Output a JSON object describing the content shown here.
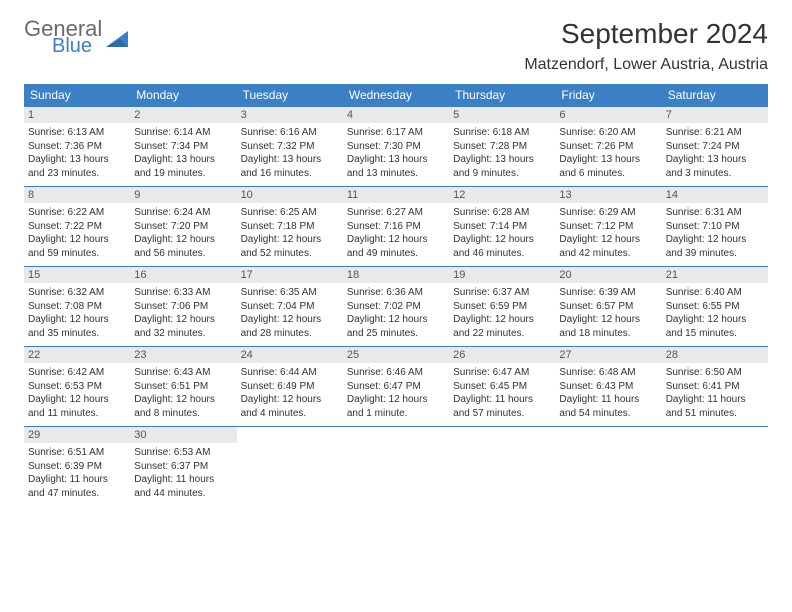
{
  "logo": {
    "general": "General",
    "blue": "Blue"
  },
  "title": "September 2024",
  "location": "Matzendorf, Lower Austria, Austria",
  "colors": {
    "header_bg": "#3b7fc4",
    "header_text": "#ffffff",
    "daynum_bg": "#e9e9e9",
    "text": "#333333",
    "logo_gray": "#6b6b6b",
    "logo_blue": "#3b7fc4"
  },
  "dayHeaders": [
    "Sunday",
    "Monday",
    "Tuesday",
    "Wednesday",
    "Thursday",
    "Friday",
    "Saturday"
  ],
  "weeks": [
    [
      {
        "n": "1",
        "sunrise": "6:13 AM",
        "sunset": "7:36 PM",
        "daylight": "13 hours and 23 minutes."
      },
      {
        "n": "2",
        "sunrise": "6:14 AM",
        "sunset": "7:34 PM",
        "daylight": "13 hours and 19 minutes."
      },
      {
        "n": "3",
        "sunrise": "6:16 AM",
        "sunset": "7:32 PM",
        "daylight": "13 hours and 16 minutes."
      },
      {
        "n": "4",
        "sunrise": "6:17 AM",
        "sunset": "7:30 PM",
        "daylight": "13 hours and 13 minutes."
      },
      {
        "n": "5",
        "sunrise": "6:18 AM",
        "sunset": "7:28 PM",
        "daylight": "13 hours and 9 minutes."
      },
      {
        "n": "6",
        "sunrise": "6:20 AM",
        "sunset": "7:26 PM",
        "daylight": "13 hours and 6 minutes."
      },
      {
        "n": "7",
        "sunrise": "6:21 AM",
        "sunset": "7:24 PM",
        "daylight": "13 hours and 3 minutes."
      }
    ],
    [
      {
        "n": "8",
        "sunrise": "6:22 AM",
        "sunset": "7:22 PM",
        "daylight": "12 hours and 59 minutes."
      },
      {
        "n": "9",
        "sunrise": "6:24 AM",
        "sunset": "7:20 PM",
        "daylight": "12 hours and 56 minutes."
      },
      {
        "n": "10",
        "sunrise": "6:25 AM",
        "sunset": "7:18 PM",
        "daylight": "12 hours and 52 minutes."
      },
      {
        "n": "11",
        "sunrise": "6:27 AM",
        "sunset": "7:16 PM",
        "daylight": "12 hours and 49 minutes."
      },
      {
        "n": "12",
        "sunrise": "6:28 AM",
        "sunset": "7:14 PM",
        "daylight": "12 hours and 46 minutes."
      },
      {
        "n": "13",
        "sunrise": "6:29 AM",
        "sunset": "7:12 PM",
        "daylight": "12 hours and 42 minutes."
      },
      {
        "n": "14",
        "sunrise": "6:31 AM",
        "sunset": "7:10 PM",
        "daylight": "12 hours and 39 minutes."
      }
    ],
    [
      {
        "n": "15",
        "sunrise": "6:32 AM",
        "sunset": "7:08 PM",
        "daylight": "12 hours and 35 minutes."
      },
      {
        "n": "16",
        "sunrise": "6:33 AM",
        "sunset": "7:06 PM",
        "daylight": "12 hours and 32 minutes."
      },
      {
        "n": "17",
        "sunrise": "6:35 AM",
        "sunset": "7:04 PM",
        "daylight": "12 hours and 28 minutes."
      },
      {
        "n": "18",
        "sunrise": "6:36 AM",
        "sunset": "7:02 PM",
        "daylight": "12 hours and 25 minutes."
      },
      {
        "n": "19",
        "sunrise": "6:37 AM",
        "sunset": "6:59 PM",
        "daylight": "12 hours and 22 minutes."
      },
      {
        "n": "20",
        "sunrise": "6:39 AM",
        "sunset": "6:57 PM",
        "daylight": "12 hours and 18 minutes."
      },
      {
        "n": "21",
        "sunrise": "6:40 AM",
        "sunset": "6:55 PM",
        "daylight": "12 hours and 15 minutes."
      }
    ],
    [
      {
        "n": "22",
        "sunrise": "6:42 AM",
        "sunset": "6:53 PM",
        "daylight": "12 hours and 11 minutes."
      },
      {
        "n": "23",
        "sunrise": "6:43 AM",
        "sunset": "6:51 PM",
        "daylight": "12 hours and 8 minutes."
      },
      {
        "n": "24",
        "sunrise": "6:44 AM",
        "sunset": "6:49 PM",
        "daylight": "12 hours and 4 minutes."
      },
      {
        "n": "25",
        "sunrise": "6:46 AM",
        "sunset": "6:47 PM",
        "daylight": "12 hours and 1 minute."
      },
      {
        "n": "26",
        "sunrise": "6:47 AM",
        "sunset": "6:45 PM",
        "daylight": "11 hours and 57 minutes."
      },
      {
        "n": "27",
        "sunrise": "6:48 AM",
        "sunset": "6:43 PM",
        "daylight": "11 hours and 54 minutes."
      },
      {
        "n": "28",
        "sunrise": "6:50 AM",
        "sunset": "6:41 PM",
        "daylight": "11 hours and 51 minutes."
      }
    ],
    [
      {
        "n": "29",
        "sunrise": "6:51 AM",
        "sunset": "6:39 PM",
        "daylight": "11 hours and 47 minutes."
      },
      {
        "n": "30",
        "sunrise": "6:53 AM",
        "sunset": "6:37 PM",
        "daylight": "11 hours and 44 minutes."
      },
      null,
      null,
      null,
      null,
      null
    ]
  ],
  "labels": {
    "sunrise": "Sunrise:",
    "sunset": "Sunset:",
    "daylight": "Daylight:"
  }
}
